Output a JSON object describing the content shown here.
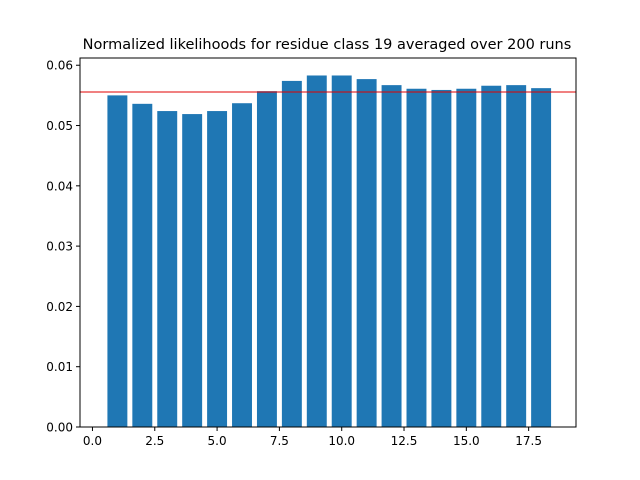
{
  "chart_data": {
    "type": "bar",
    "title": "Normalized likelihoods for residue class 19 averaged over 200 runs",
    "xlabel": "",
    "ylabel": "",
    "x": [
      1,
      2,
      3,
      4,
      5,
      6,
      7,
      8,
      9,
      10,
      11,
      12,
      13,
      14,
      15,
      16,
      17,
      18
    ],
    "values": [
      0.055,
      0.0536,
      0.0524,
      0.0519,
      0.0524,
      0.0537,
      0.0557,
      0.0574,
      0.0583,
      0.0583,
      0.0577,
      0.0567,
      0.0561,
      0.0559,
      0.0561,
      0.0566,
      0.0567,
      0.0562
    ],
    "bar_color": "#1f77b4",
    "reference_line": {
      "y": 0.05556,
      "color": "#e00000"
    },
    "xlim": [
      -0.5,
      19.4
    ],
    "ylim": [
      0,
      0.0612
    ],
    "xticks": [
      0.0,
      2.5,
      5.0,
      7.5,
      10.0,
      12.5,
      15.0,
      17.5
    ],
    "xtick_labels": [
      "0.0",
      "2.5",
      "5.0",
      "7.5",
      "10.0",
      "12.5",
      "15.0",
      "17.5"
    ],
    "yticks": [
      0.0,
      0.01,
      0.02,
      0.03,
      0.04,
      0.05,
      0.06
    ],
    "ytick_labels": [
      "0.00",
      "0.01",
      "0.02",
      "0.03",
      "0.04",
      "0.05",
      "0.06"
    ],
    "grid": false,
    "legend": "none"
  }
}
